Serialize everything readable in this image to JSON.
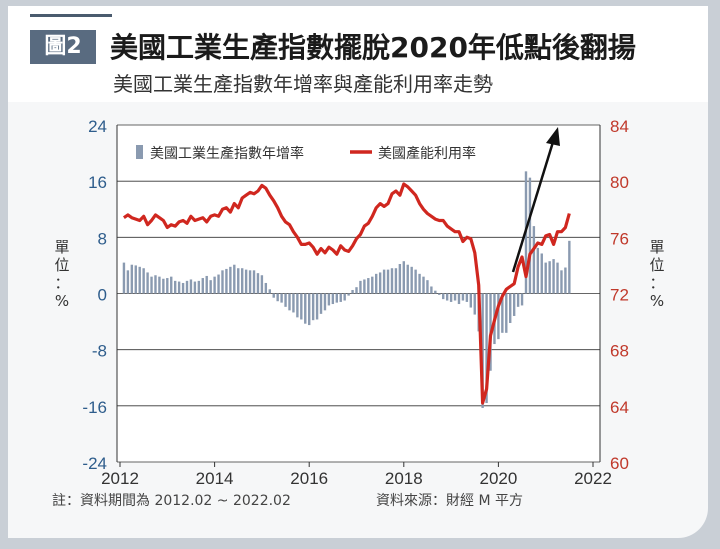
{
  "header": {
    "badge": "圖2",
    "title": "美國工業生產指數擺脫2020年低點後翻揚",
    "subtitle": "美國工業生產指數年增率與產能利用率走勢"
  },
  "footer": {
    "note": "註：資料期間為 2012.02 ~ 2022.02",
    "source": "資料來源：財經 M 平方"
  },
  "colors": {
    "bar": "#8a9ab0",
    "line": "#d0271f",
    "left_axis": "#2e5d8c",
    "right_axis": "#c0392b"
  },
  "chart_data": {
    "type": "bar+line",
    "x_ticks": [
      "2012",
      "2014",
      "2016",
      "2018",
      "2020",
      "2022"
    ],
    "left_axis": {
      "label": "單位：%",
      "ticks": [
        "24",
        "16",
        "8",
        "0",
        "-8",
        "-16",
        "-24"
      ],
      "ylim": [
        -24,
        24
      ]
    },
    "right_axis": {
      "label": "單位：%",
      "ticks": [
        "84",
        "80",
        "76",
        "72",
        "68",
        "64",
        "60"
      ],
      "ylim": [
        60,
        84
      ]
    },
    "legend": [
      "美國工業生產指數年增率",
      "美國產能利用率"
    ],
    "legend_placement": "top-left",
    "grid": "horizontal",
    "annotation": "upward arrow",
    "series": [
      {
        "name": "美國工業生產指數年增率",
        "kind": "bar",
        "axis": "left",
        "values": [
          4.4,
          3.3,
          4.1,
          4.0,
          3.8,
          3.6,
          3.0,
          2.4,
          2.6,
          2.4,
          2.1,
          2.2,
          2.4,
          1.8,
          1.7,
          1.5,
          1.8,
          2.0,
          1.7,
          1.8,
          2.2,
          2.5,
          1.9,
          2.4,
          2.7,
          3.3,
          3.5,
          3.8,
          4.1,
          3.6,
          3.6,
          3.4,
          3.3,
          3.3,
          2.9,
          2.6,
          1.5,
          0.6,
          -0.6,
          -1.1,
          -1.3,
          -1.9,
          -2.4,
          -2.7,
          -3.4,
          -3.7,
          -4.3,
          -4.5,
          -3.8,
          -3.7,
          -2.9,
          -2.4,
          -1.7,
          -1.5,
          -1.3,
          -1.2,
          -1.0,
          -0.3,
          0.5,
          0.9,
          1.8,
          2.0,
          2.2,
          2.4,
          2.8,
          3.0,
          3.4,
          3.4,
          3.6,
          3.6,
          4.2,
          4.6,
          4.1,
          3.8,
          3.4,
          2.8,
          2.4,
          1.9,
          1.0,
          0.4,
          -0.2,
          -0.8,
          -1.0,
          -1.2,
          -1.0,
          -1.5,
          -1.0,
          -1.2,
          -2.0,
          -3.0,
          -5.4,
          -16.3,
          -15.6,
          -11.0,
          -7.2,
          -6.5,
          -5.6,
          -5.6,
          -4.2,
          -3.2,
          -1.9,
          -1.7,
          17.4,
          16.5,
          9.6,
          6.5,
          5.7,
          4.4,
          4.6,
          4.9,
          4.4,
          3.3,
          3.7,
          7.5
        ]
      },
      {
        "name": "美國產能利用率",
        "kind": "line",
        "axis": "right",
        "values": [
          77.4,
          77.6,
          77.4,
          77.3,
          77.2,
          77.5,
          76.9,
          77.2,
          77.6,
          77.4,
          77.2,
          76.7,
          76.9,
          76.8,
          77.1,
          77.2,
          77.0,
          77.5,
          77.2,
          77.3,
          77.4,
          77.1,
          77.5,
          77.6,
          77.5,
          78.0,
          78.1,
          77.8,
          78.4,
          78.1,
          78.8,
          79.0,
          79.2,
          79.1,
          79.3,
          79.7,
          79.5,
          79.0,
          78.6,
          78.1,
          77.5,
          77.1,
          76.9,
          76.4,
          76.0,
          75.5,
          75.5,
          75.6,
          75.3,
          74.8,
          75.2,
          74.9,
          75.3,
          75.1,
          74.8,
          75.4,
          75.1,
          75.0,
          75.4,
          75.9,
          76.2,
          76.8,
          77.0,
          77.5,
          78.1,
          78.4,
          78.2,
          78.4,
          79.1,
          79.3,
          79.0,
          79.8,
          79.6,
          79.3,
          79.0,
          78.4,
          78.0,
          77.7,
          77.5,
          77.3,
          77.2,
          77.2,
          76.8,
          76.6,
          76.4,
          76.4,
          75.7,
          76.0,
          75.9,
          74.9,
          72.6,
          64.2,
          65.2,
          69.0,
          70.1,
          71.1,
          71.8,
          72.3,
          72.5,
          72.7,
          73.9,
          74.6,
          73.2,
          74.8,
          75.2,
          75.6,
          75.5,
          76.1,
          76.2,
          75.5,
          76.4,
          76.4,
          76.7,
          77.7
        ]
      }
    ]
  }
}
